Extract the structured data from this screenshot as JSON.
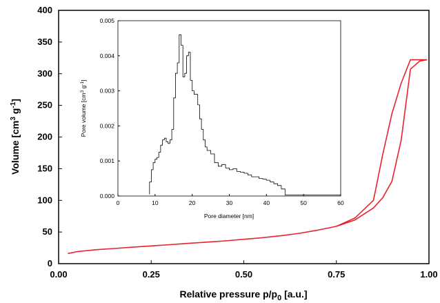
{
  "chart_data": [
    {
      "id": "main",
      "type": "line",
      "xlabel": "Relative pressure p/p",
      "xlabel_sub": "0",
      "xlabel_unit": " [a.u.]",
      "ylabel": "Volume [cm",
      "ylabel_sup1": "3",
      "ylabel_mid": " g",
      "ylabel_sup2": "-1",
      "ylabel_end": "]",
      "xlim": [
        0,
        1.0
      ],
      "ylim": [
        0,
        400
      ],
      "xticks": [
        0.0,
        0.25,
        0.5,
        0.75,
        1.0
      ],
      "xtick_labels": [
        "0.00",
        "0.25",
        "0.50",
        "0.75",
        "1.00"
      ],
      "yticks": [
        0,
        50,
        100,
        150,
        200,
        250,
        300,
        350,
        400
      ],
      "ytick_labels": [
        "0",
        "50",
        "100",
        "150",
        "200",
        "250",
        "300",
        "350",
        "400"
      ],
      "grid": false,
      "line_color": "#e8222a",
      "series": [
        {
          "name": "",
          "x": [
            0.025,
            0.05,
            0.1,
            0.15,
            0.2,
            0.25,
            0.3,
            0.35,
            0.4,
            0.45,
            0.5,
            0.55,
            0.6,
            0.65,
            0.7,
            0.75,
            0.8,
            0.85,
            0.875,
            0.9,
            0.925,
            0.95,
            0.975,
            0.995
          ],
          "y": [
            16,
            19,
            22,
            24,
            26,
            28,
            30,
            32,
            34,
            36,
            38.5,
            41,
            44,
            48,
            53,
            59,
            69,
            88,
            104,
            130,
            195,
            307,
            320,
            322
          ]
        },
        {
          "name": "",
          "x": [
            0.995,
            0.975,
            0.95,
            0.925,
            0.9,
            0.875,
            0.85,
            0.8,
            0.75
          ],
          "y": [
            322,
            322,
            322,
            285,
            237,
            172,
            100,
            72,
            59
          ]
        }
      ]
    },
    {
      "id": "inset",
      "type": "line",
      "xlabel": "Pore diameter [nm]",
      "ylabel": "Pore volume  [cm",
      "ylabel_sup1": "3",
      "ylabel_mid": " g",
      "ylabel_sup2": "-1",
      "ylabel_end": "]",
      "xlim": [
        0,
        60
      ],
      "ylim": [
        0,
        0.005
      ],
      "xticks": [
        0,
        10,
        20,
        30,
        40,
        50,
        60
      ],
      "xtick_labels": [
        "0",
        "10",
        "20",
        "30",
        "40",
        "50",
        "60"
      ],
      "yticks": [
        0,
        0.001,
        0.002,
        0.003,
        0.004,
        0.005
      ],
      "ytick_labels": [
        "0.000",
        "0.001",
        "0.002",
        "0.003",
        "0.004",
        "0.005"
      ],
      "grid": false,
      "line_color": "#000000",
      "series": [
        {
          "name": "",
          "x": [
            8.5,
            9,
            9.5,
            10,
            10.5,
            11,
            11.5,
            12,
            12.5,
            13,
            13.5,
            14,
            14.5,
            15,
            15.5,
            16,
            16.5,
            17,
            17.5,
            18,
            18.5,
            19,
            19.5,
            20,
            20.5,
            21,
            21.5,
            22,
            22.5,
            23,
            23.5,
            24,
            25,
            26,
            27,
            28,
            29,
            30,
            31,
            32,
            33,
            34,
            35,
            36,
            37,
            38,
            39,
            40,
            41,
            42,
            43,
            44,
            45,
            46,
            50,
            55,
            60
          ],
          "y": [
            5e-05,
            0.0004,
            0.00075,
            0.00095,
            0.00105,
            0.0011,
            0.00125,
            0.00145,
            0.0016,
            0.00165,
            0.00155,
            0.0015,
            0.0016,
            0.0019,
            0.0028,
            0.0035,
            0.0038,
            0.0046,
            0.0043,
            0.0034,
            0.0035,
            0.004,
            0.0041,
            0.0033,
            0.003,
            0.0029,
            0.0029,
            0.0026,
            0.0022,
            0.0019,
            0.0016,
            0.0014,
            0.0013,
            0.0012,
            0.00095,
            0.00085,
            0.0009,
            0.0008,
            0.00075,
            0.00078,
            0.0007,
            0.00068,
            0.00065,
            0.0006,
            0.00055,
            0.00055,
            0.0005,
            0.00048,
            0.00045,
            0.0004,
            0.00035,
            0.0003,
            0.0002,
            3e-05,
            3e-05,
            3e-05,
            3e-05
          ]
        }
      ]
    }
  ]
}
